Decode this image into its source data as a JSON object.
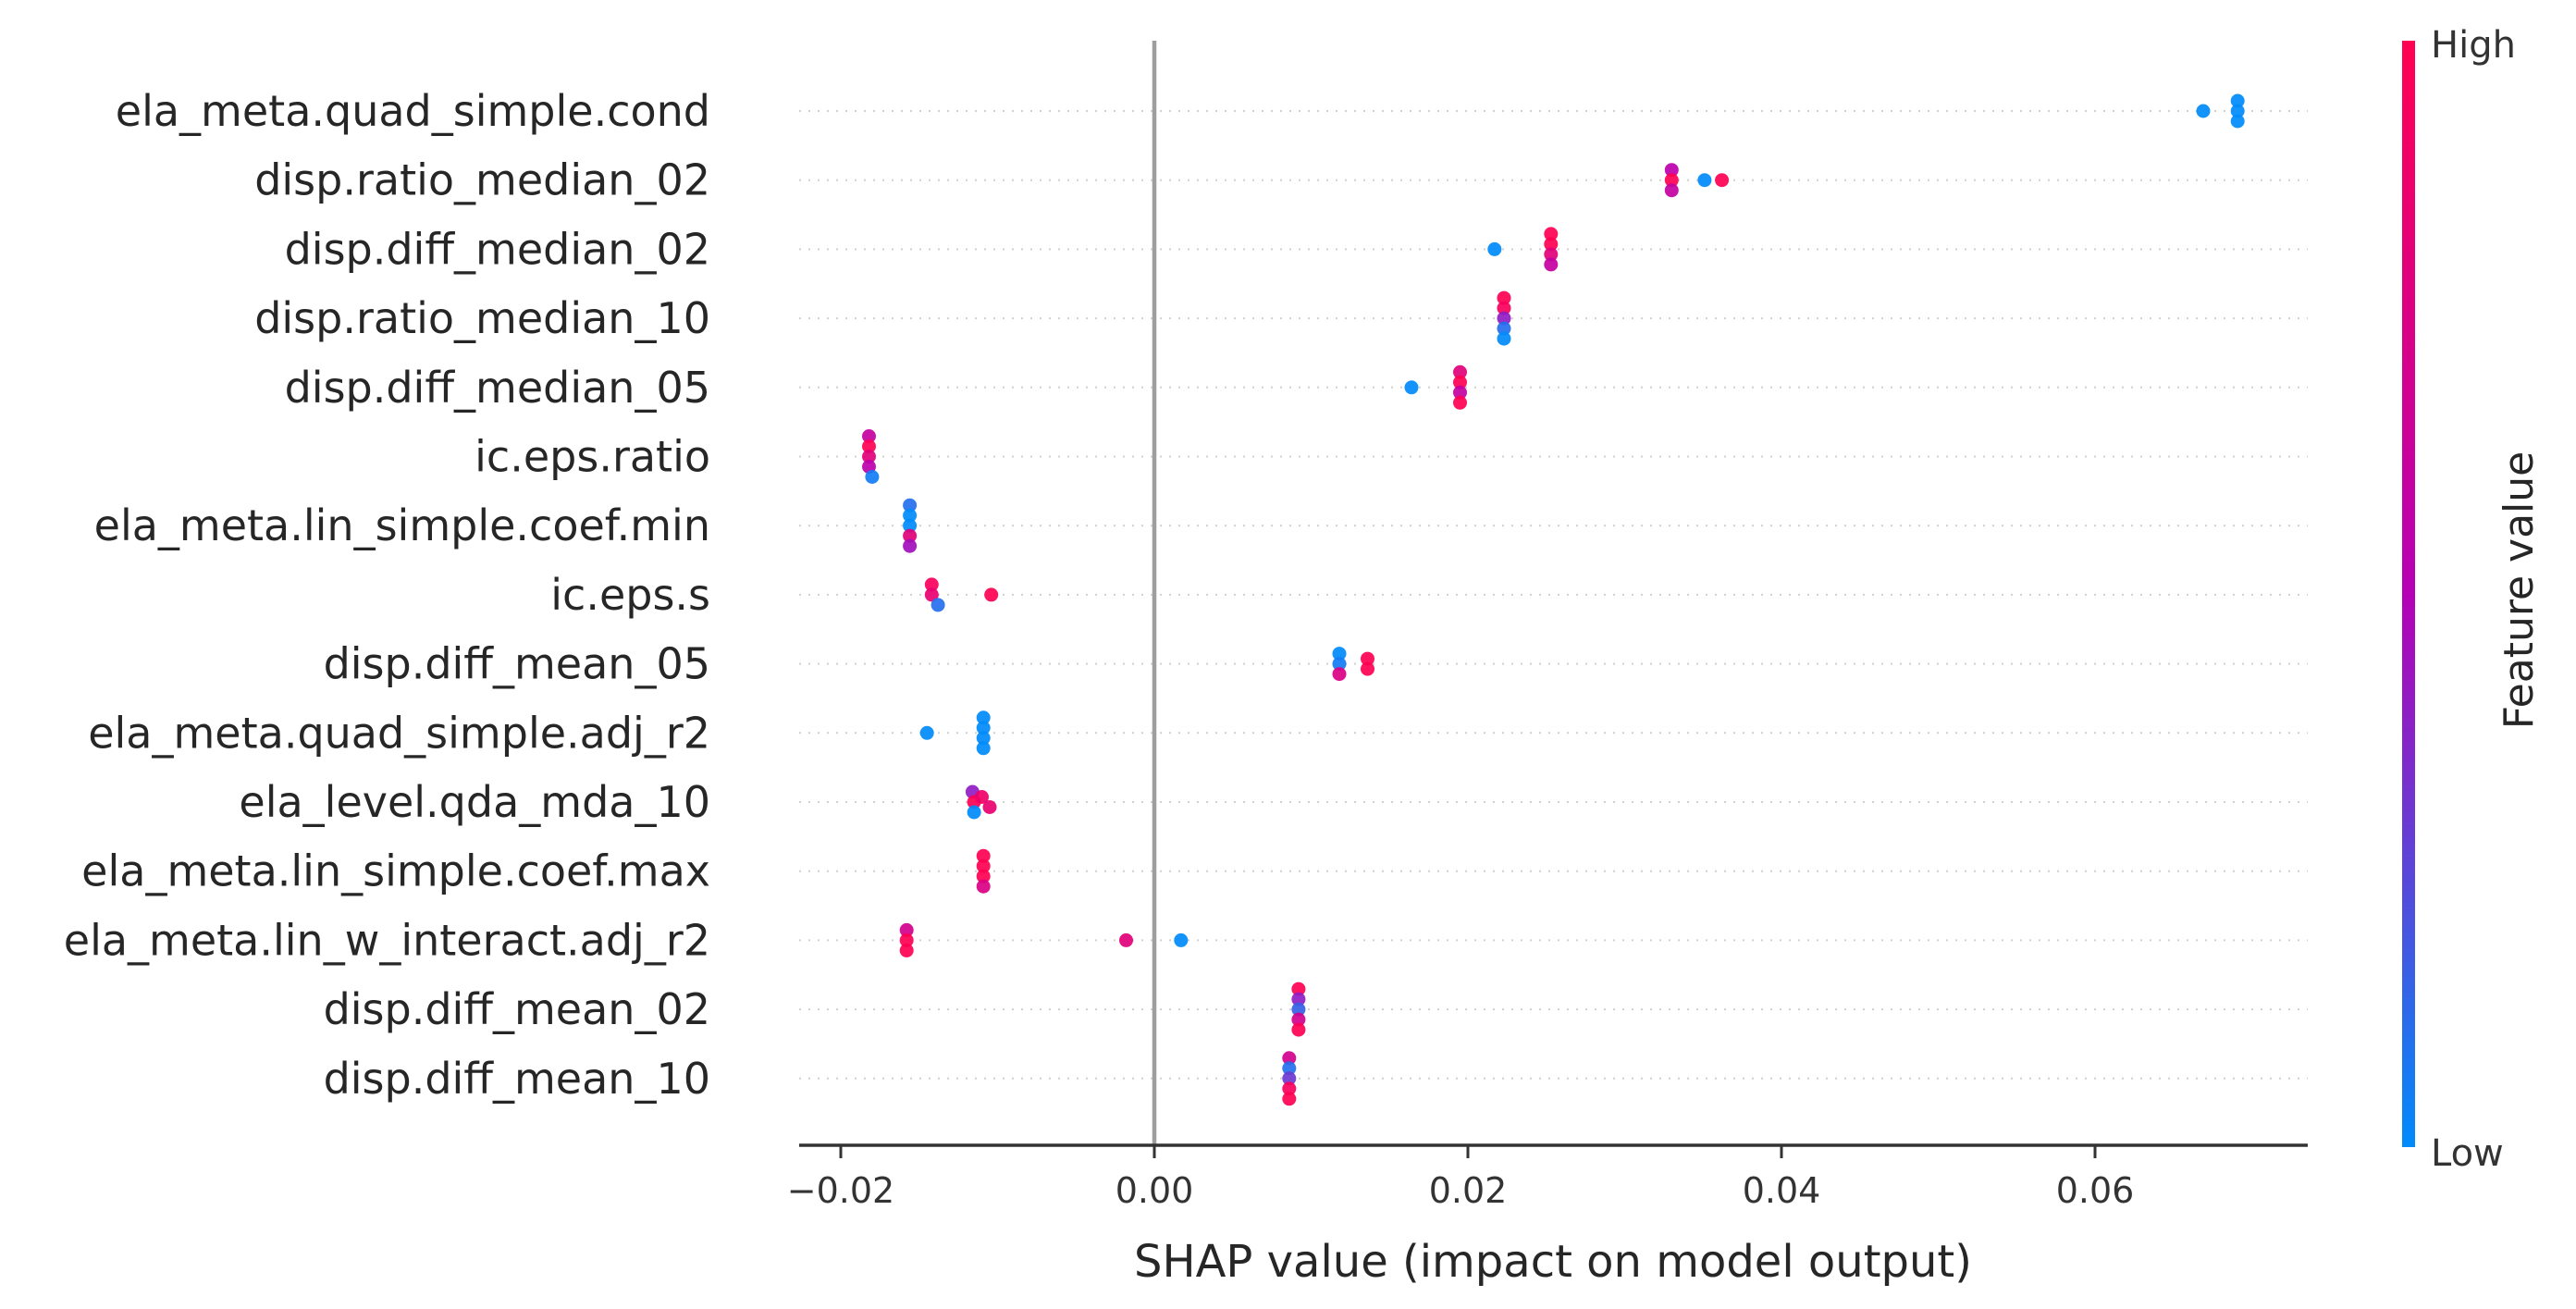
{
  "chart_data": {
    "type": "scatter",
    "subtype": "shap-beeswarm",
    "title": "",
    "xlabel": "SHAP value (impact on model output)",
    "ylabel": "",
    "xlim": [
      -0.0225,
      0.0735
    ],
    "xticks": [
      -0.02,
      0.0,
      0.02,
      0.04,
      0.06
    ],
    "xtick_labels": [
      "−0.02",
      "0.00",
      "0.02",
      "0.04",
      "0.06"
    ],
    "zero_line": 0.0,
    "grid": false,
    "row_guides": "dotted",
    "colorbar": {
      "title": "Feature value",
      "high_label": "High",
      "low_label": "Low",
      "low_color": "#008bfb",
      "high_color": "#ff0052"
    },
    "features": [
      {
        "name": "ela_meta.quad_simple.cond",
        "points": [
          {
            "x": 0.0669,
            "v": 0.0
          },
          {
            "x": 0.0691,
            "v": 0.0
          },
          {
            "x": 0.0691,
            "v": 0.0
          },
          {
            "x": 0.0691,
            "v": 0.0
          }
        ]
      },
      {
        "name": "disp.ratio_median_02",
        "points": [
          {
            "x": 0.033,
            "v": 0.55
          },
          {
            "x": 0.033,
            "v": 1.0
          },
          {
            "x": 0.033,
            "v": 0.6
          },
          {
            "x": 0.0351,
            "v": 0.0
          },
          {
            "x": 0.0362,
            "v": 1.0
          }
        ]
      },
      {
        "name": "disp.diff_median_02",
        "points": [
          {
            "x": 0.0217,
            "v": 0.0
          },
          {
            "x": 0.0253,
            "v": 1.0
          },
          {
            "x": 0.0253,
            "v": 1.0
          },
          {
            "x": 0.0253,
            "v": 0.8
          },
          {
            "x": 0.0253,
            "v": 0.6
          }
        ]
      },
      {
        "name": "disp.ratio_median_10",
        "points": [
          {
            "x": 0.0223,
            "v": 1.0
          },
          {
            "x": 0.0223,
            "v": 0.95
          },
          {
            "x": 0.0223,
            "v": 0.4
          },
          {
            "x": 0.0223,
            "v": 0.1
          },
          {
            "x": 0.0223,
            "v": 0.0
          }
        ]
      },
      {
        "name": "disp.diff_median_05",
        "points": [
          {
            "x": 0.0164,
            "v": 0.0
          },
          {
            "x": 0.0195,
            "v": 0.8
          },
          {
            "x": 0.0195,
            "v": 1.0
          },
          {
            "x": 0.0195,
            "v": 0.6
          },
          {
            "x": 0.0195,
            "v": 1.0
          }
        ]
      },
      {
        "name": "ic.eps.ratio",
        "points": [
          {
            "x": -0.0182,
            "v": 0.6
          },
          {
            "x": -0.0182,
            "v": 1.0
          },
          {
            "x": -0.0182,
            "v": 0.8
          },
          {
            "x": -0.018,
            "v": 0.05
          },
          {
            "x": -0.0182,
            "v": 0.55
          }
        ]
      },
      {
        "name": "ela_meta.lin_simple.coef.min",
        "points": [
          {
            "x": -0.0156,
            "v": 0.1
          },
          {
            "x": -0.0156,
            "v": 0.0
          },
          {
            "x": -0.0156,
            "v": 0.0
          },
          {
            "x": -0.0156,
            "v": 0.8
          },
          {
            "x": -0.0156,
            "v": 0.45
          }
        ]
      },
      {
        "name": "ic.eps.s",
        "points": [
          {
            "x": -0.0142,
            "v": 0.95
          },
          {
            "x": -0.0142,
            "v": 0.85
          },
          {
            "x": -0.0138,
            "v": 0.1
          },
          {
            "x": -0.0104,
            "v": 1.0
          }
        ]
      },
      {
        "name": "disp.diff_mean_05",
        "points": [
          {
            "x": 0.0118,
            "v": 0.0
          },
          {
            "x": 0.0118,
            "v": 0.05
          },
          {
            "x": 0.0118,
            "v": 0.75
          },
          {
            "x": 0.0136,
            "v": 1.0
          },
          {
            "x": 0.0136,
            "v": 1.0
          }
        ]
      },
      {
        "name": "ela_meta.quad_simple.adj_r2",
        "points": [
          {
            "x": -0.0145,
            "v": 0.0
          },
          {
            "x": -0.0109,
            "v": 0.0
          },
          {
            "x": -0.0109,
            "v": 0.0
          },
          {
            "x": -0.0109,
            "v": 0.0
          },
          {
            "x": -0.0109,
            "v": 0.0
          }
        ]
      },
      {
        "name": "ela_level.qda_mda_10",
        "points": [
          {
            "x": -0.0115,
            "v": 1.0
          },
          {
            "x": -0.011,
            "v": 0.9
          },
          {
            "x": -0.0116,
            "v": 0.4
          },
          {
            "x": -0.0105,
            "v": 0.85
          },
          {
            "x": -0.0115,
            "v": 0.0
          }
        ]
      },
      {
        "name": "ela_meta.lin_simple.coef.max",
        "points": [
          {
            "x": -0.0109,
            "v": 1.0
          },
          {
            "x": -0.0109,
            "v": 1.0
          },
          {
            "x": -0.0109,
            "v": 1.0
          },
          {
            "x": -0.0109,
            "v": 0.75
          }
        ]
      },
      {
        "name": "ela_meta.lin_w_interact.adj_r2",
        "points": [
          {
            "x": -0.0158,
            "v": 0.7
          },
          {
            "x": -0.0158,
            "v": 1.0
          },
          {
            "x": -0.0158,
            "v": 1.0
          },
          {
            "x": -0.0018,
            "v": 0.8
          },
          {
            "x": 0.0017,
            "v": 0.0
          }
        ]
      },
      {
        "name": "disp.diff_mean_02",
        "points": [
          {
            "x": 0.0092,
            "v": 1.0
          },
          {
            "x": 0.0092,
            "v": 0.4
          },
          {
            "x": 0.0092,
            "v": 0.15
          },
          {
            "x": 0.0092,
            "v": 0.7
          },
          {
            "x": 0.0092,
            "v": 1.0
          }
        ]
      },
      {
        "name": "disp.diff_mean_10",
        "points": [
          {
            "x": 0.0086,
            "v": 0.7
          },
          {
            "x": 0.0086,
            "v": 0.1
          },
          {
            "x": 0.0086,
            "v": 0.3
          },
          {
            "x": 0.0086,
            "v": 0.95
          },
          {
            "x": 0.0086,
            "v": 1.0
          }
        ]
      }
    ]
  }
}
